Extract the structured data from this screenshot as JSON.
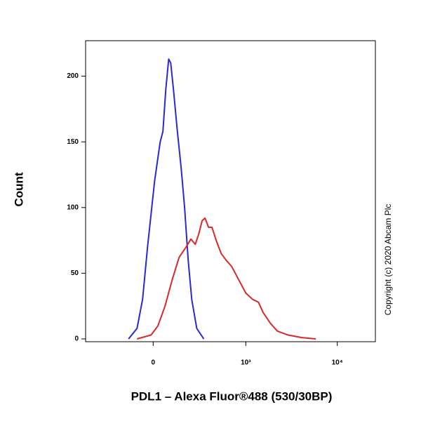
{
  "chart_data": {
    "type": "line",
    "x_label": "PDL1 – Alexa Fluor®488 (530/30BP)",
    "y_label": "Count",
    "annotation": "Copyright (c) 2020 Abcam Plc",
    "xscale": "biexponential",
    "xlim": [
      -520,
      26000
    ],
    "ylim": [
      0,
      227
    ],
    "xticks": [
      0,
      {
        "value": 1000,
        "label": "10³"
      },
      {
        "value": 10000,
        "label": "10⁴"
      }
    ],
    "yticks": [
      0,
      50,
      100,
      150,
      200
    ],
    "series": [
      {
        "color": "#2828d8",
        "x": [
          -130,
          -82,
          -53,
          -28,
          7,
          35,
          49,
          64,
          79,
          90,
          105,
          126,
          151,
          173,
          197,
          223,
          262,
          324
        ],
        "values": [
          0,
          8,
          30,
          70,
          120,
          150,
          158,
          190,
          213,
          210,
          190,
          160,
          130,
          100,
          60,
          30,
          8,
          0
        ]
      },
      {
        "color": "#d82828",
        "x": [
          -82,
          -10,
          24,
          60,
          98,
          138,
          183,
          217,
          250,
          279,
          309,
          336,
          372,
          410,
          460,
          527,
          600,
          697,
          834,
          998,
          1194,
          1378,
          1556,
          1859,
          2218,
          2891,
          4099,
          5841
        ],
        "values": [
          0,
          3,
          10,
          25,
          45,
          62,
          70,
          76,
          72,
          80,
          90,
          92,
          85,
          85,
          75,
          65,
          60,
          55,
          45,
          35,
          30,
          28,
          20,
          12,
          6,
          3,
          1,
          0
        ]
      }
    ]
  }
}
